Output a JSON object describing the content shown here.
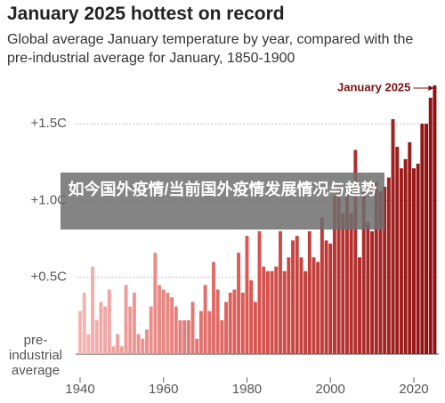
{
  "chart_data": {
    "type": "bar",
    "title": "January 2025 hottest on record",
    "subtitle": "Global average January temperature by year, compared with the pre-industrial average for January, 1850-1900",
    "annotation": "January 2025",
    "overlay": "如今国外疫情/当前国外疫情发展情况与趋势",
    "x": [
      1940,
      1941,
      1942,
      1943,
      1944,
      1945,
      1946,
      1947,
      1948,
      1949,
      1950,
      1951,
      1952,
      1953,
      1954,
      1955,
      1956,
      1957,
      1958,
      1959,
      1960,
      1961,
      1962,
      1963,
      1964,
      1965,
      1966,
      1967,
      1968,
      1969,
      1970,
      1971,
      1972,
      1973,
      1974,
      1975,
      1976,
      1977,
      1978,
      1979,
      1980,
      1981,
      1982,
      1983,
      1984,
      1985,
      1986,
      1987,
      1988,
      1989,
      1990,
      1991,
      1992,
      1993,
      1994,
      1995,
      1996,
      1997,
      1998,
      1999,
      2000,
      2001,
      2002,
      2003,
      2004,
      2005,
      2006,
      2007,
      2008,
      2009,
      2010,
      2011,
      2012,
      2013,
      2014,
      2015,
      2016,
      2017,
      2018,
      2019,
      2020,
      2021,
      2022,
      2023,
      2024,
      2025
    ],
    "values": [
      0.28,
      0.4,
      0.13,
      0.57,
      0.22,
      0.34,
      0.31,
      0.42,
      0.05,
      0.13,
      0.05,
      0.45,
      0.31,
      0.4,
      0.13,
      0.1,
      0.16,
      0.31,
      0.66,
      0.45,
      0.42,
      0.4,
      0.37,
      0.31,
      0.22,
      0.22,
      0.22,
      0.34,
      0.1,
      0.28,
      0.45,
      0.28,
      0.6,
      0.42,
      0.22,
      0.34,
      0.4,
      0.42,
      0.66,
      0.4,
      0.77,
      0.48,
      0.34,
      0.8,
      0.57,
      0.54,
      0.54,
      0.57,
      0.8,
      0.54,
      0.63,
      0.74,
      0.77,
      0.63,
      0.54,
      0.8,
      0.63,
      0.6,
      0.89,
      0.74,
      0.72,
      1.03,
      1.09,
      0.92,
      1.06,
      0.92,
      1.33,
      0.63,
      1.06,
      0.86,
      0.8,
      1.12,
      1.06,
      1.09,
      1.15,
      1.53,
      1.35,
      1.21,
      1.27,
      1.38,
      1.21,
      1.24,
      1.5,
      1.5,
      1.67,
      1.75
    ],
    "color_scale": [
      "#f4b5b2",
      "#d9534f",
      "#8e1010"
    ],
    "xlim": [
      1939,
      2026
    ],
    "xticks": [
      1940,
      1960,
      1980,
      2000,
      2020
    ],
    "ylim": [
      0,
      1.75
    ],
    "yticks": [
      {
        "value": 0,
        "label": "pre-industrial average"
      },
      {
        "value": 0.5,
        "label": "+0.5C"
      },
      {
        "value": 1.0,
        "label": "+1.0C"
      },
      {
        "value": 1.5,
        "label": "+1.5C"
      }
    ],
    "grid": true
  }
}
